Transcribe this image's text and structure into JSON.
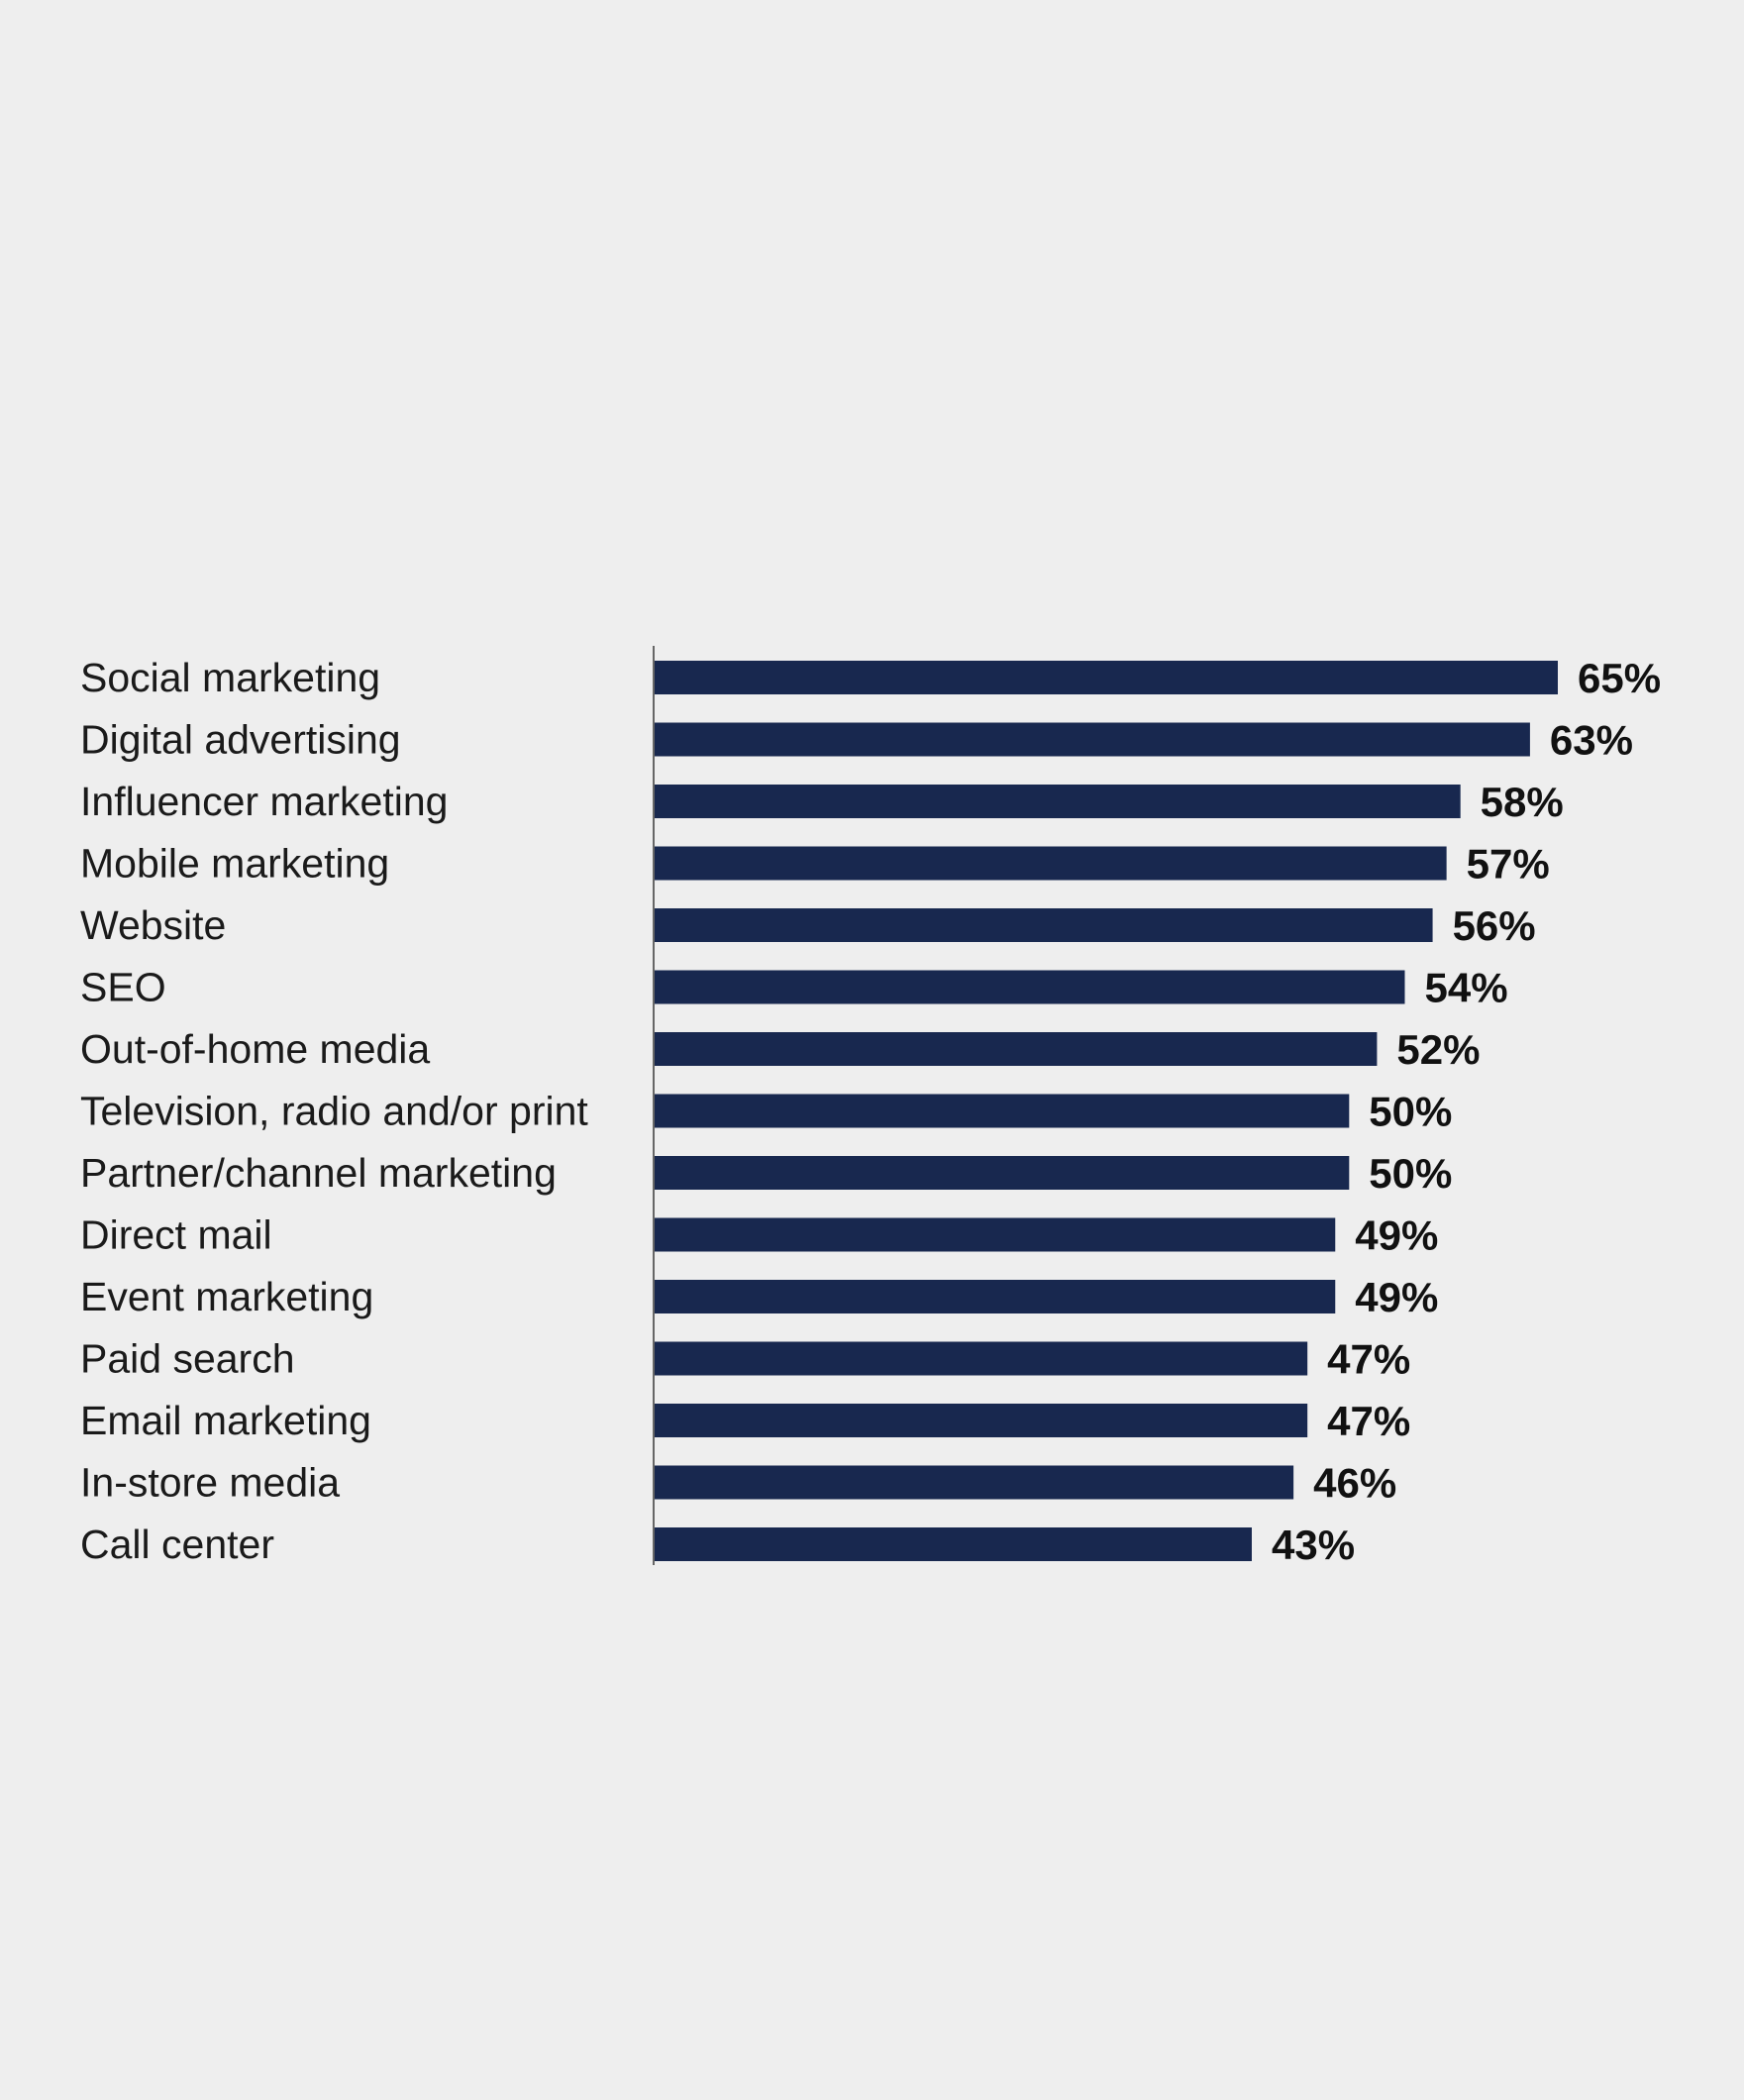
{
  "chart_data": {
    "type": "bar",
    "orientation": "horizontal",
    "title": "",
    "xlabel": "",
    "ylabel": "",
    "categories": [
      "Social marketing",
      "Digital advertising",
      "Influencer marketing",
      "Mobile marketing",
      "Website",
      "SEO",
      "Out-of-home media",
      "Television, radio and/or print",
      "Partner/channel marketing",
      "Direct mail",
      "Event marketing",
      "Paid search",
      "Email marketing",
      "In-store media",
      "Call center"
    ],
    "values": [
      65,
      63,
      58,
      57,
      56,
      54,
      52,
      50,
      50,
      49,
      49,
      47,
      47,
      46,
      43
    ],
    "value_labels": [
      "65%",
      "63%",
      "58%",
      "57%",
      "56%",
      "54%",
      "52%",
      "50%",
      "50%",
      "49%",
      "49%",
      "47%",
      "47%",
      "46%",
      "43%"
    ],
    "xlim": [
      0,
      65
    ],
    "grid": false,
    "bar_color": "#18284f",
    "background": "#eeeeee"
  }
}
